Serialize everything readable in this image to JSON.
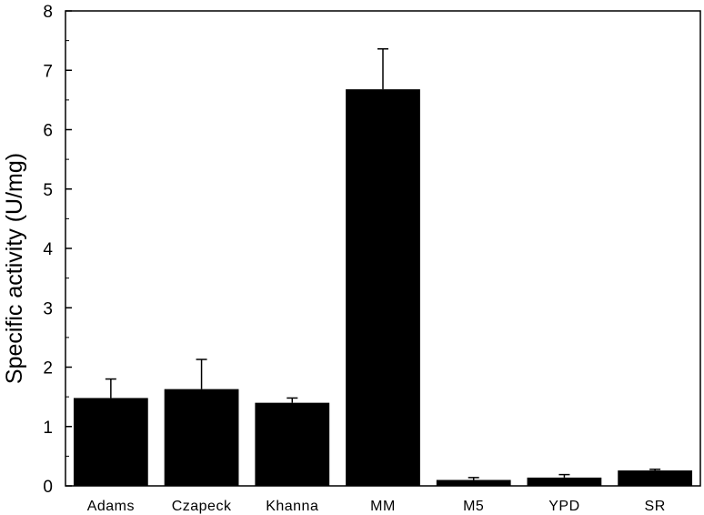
{
  "chart_data": {
    "type": "bar",
    "title": "",
    "xlabel": "",
    "ylabel": "Specific activity (U/mg)",
    "categories": [
      "Adams",
      "Czapeck",
      "Khanna",
      "MM",
      "M5",
      "YPD",
      "SR"
    ],
    "values": [
      1.48,
      1.63,
      1.4,
      6.68,
      0.1,
      0.14,
      0.26
    ],
    "errors": [
      0.32,
      0.5,
      0.08,
      0.68,
      0.04,
      0.05,
      0.02
    ],
    "ylim": [
      0,
      8
    ],
    "yticks": [
      "0",
      "1",
      "2",
      "3",
      "4",
      "5",
      "6",
      "7",
      "8"
    ],
    "grid": false,
    "legend": "none",
    "bar_color": "#000000"
  }
}
